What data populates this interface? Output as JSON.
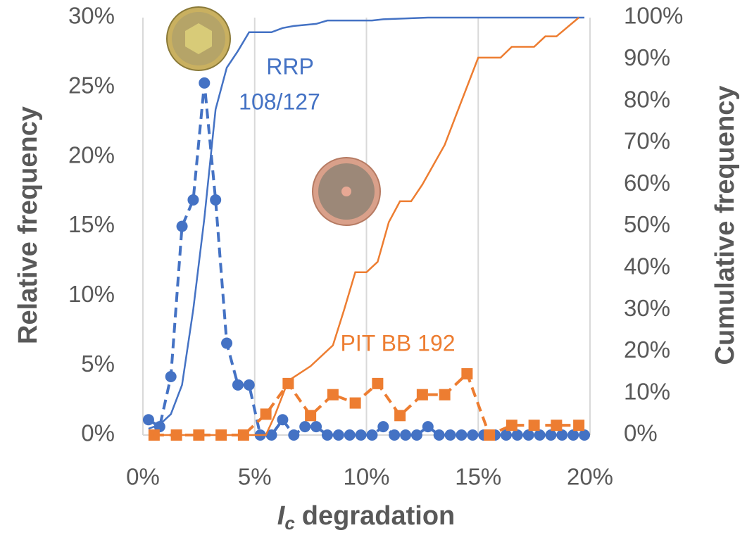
{
  "chart_data": {
    "type": "line",
    "ylabel": "Relative frequency",
    "y2label": "Cumulative frequency",
    "xlabel": {
      "symbol": "I",
      "subscript": "c",
      "text": "degradation"
    },
    "xlim": [
      0,
      20
    ],
    "xticks": [
      {
        "value": 0,
        "label": "0%"
      },
      {
        "value": 5,
        "label": "5%"
      },
      {
        "value": 10,
        "label": "10%"
      },
      {
        "value": 15,
        "label": "15%"
      },
      {
        "value": 20,
        "label": "20%"
      }
    ],
    "ylim": [
      0,
      30
    ],
    "yticks": [
      {
        "value": 0,
        "label": "0%"
      },
      {
        "value": 5,
        "label": "5%"
      },
      {
        "value": 10,
        "label": "10%"
      },
      {
        "value": 15,
        "label": "15%"
      },
      {
        "value": 20,
        "label": "20%"
      },
      {
        "value": 25,
        "label": "25%"
      },
      {
        "value": 30,
        "label": "30%"
      }
    ],
    "y2lim": [
      0,
      100
    ],
    "y2ticks": [
      {
        "value": 0,
        "label": "0%"
      },
      {
        "value": 10,
        "label": "10%"
      },
      {
        "value": 20,
        "label": "20%"
      },
      {
        "value": 30,
        "label": "30%"
      },
      {
        "value": 40,
        "label": "40%"
      },
      {
        "value": 50,
        "label": "50%"
      },
      {
        "value": 60,
        "label": "60%"
      },
      {
        "value": 70,
        "label": "70%"
      },
      {
        "value": 80,
        "label": "80%"
      },
      {
        "value": 90,
        "label": "90%"
      },
      {
        "value": 100,
        "label": "100%"
      }
    ],
    "grid": "x",
    "annotations": [
      {
        "text": "RRP",
        "color": "#4472c4"
      },
      {
        "text": "108/127",
        "color": "#4472c4"
      },
      {
        "text": "PIT BB 192",
        "color": "#ed7d31"
      }
    ],
    "series": [
      {
        "color": "#4472c4",
        "style": "dashed",
        "marker": "circle",
        "axis": "y",
        "x": [
          0.25,
          0.75,
          1.25,
          1.75,
          2.25,
          2.75,
          3.25,
          3.75,
          4.25,
          4.75,
          5.25,
          5.75,
          6.25,
          6.75,
          7.25,
          7.75,
          8.25,
          8.75,
          9.25,
          9.75,
          10.25,
          10.75,
          11.25,
          11.75,
          12.25,
          12.75,
          13.25,
          13.75,
          14.25,
          14.75,
          15.25,
          15.75,
          16.25,
          16.75,
          17.25,
          17.75,
          18.25,
          18.75,
          19.25,
          19.75
        ],
        "values": [
          1.1,
          0.6,
          4.2,
          15.0,
          16.9,
          25.3,
          16.9,
          6.6,
          3.6,
          3.6,
          0,
          0,
          1.1,
          0,
          0.6,
          0.6,
          0,
          0,
          0,
          0,
          0,
          0.6,
          0,
          0,
          0,
          0.6,
          0,
          0,
          0,
          0,
          0,
          0,
          0,
          0,
          0,
          0,
          0,
          0,
          0,
          0
        ]
      },
      {
        "color": "#ed7d31",
        "style": "dashed",
        "marker": "square",
        "axis": "y",
        "x": [
          0.5,
          1.5,
          2.5,
          3.5,
          4.5,
          5.5,
          6.5,
          7.5,
          8.5,
          9.5,
          10.5,
          11.5,
          12.5,
          13.5,
          14.5,
          15.5,
          16.5,
          17.5,
          18.5,
          19.5
        ],
        "values": [
          0,
          0,
          0,
          0,
          0,
          1.5,
          3.7,
          1.4,
          2.9,
          2.3,
          3.7,
          1.4,
          2.9,
          2.9,
          4.4,
          0,
          0.7,
          0.7,
          0.7,
          0.7
        ]
      },
      {
        "color": "#4472c4",
        "style": "solid",
        "marker": "none",
        "axis": "y2",
        "x": [
          0.25,
          0.75,
          1.25,
          1.75,
          2.25,
          2.75,
          3.25,
          3.75,
          4.25,
          4.75,
          5.25,
          5.75,
          6.25,
          6.75,
          7.75,
          8.25,
          10.25,
          10.75,
          12.75,
          19.75
        ],
        "values": [
          1.5,
          2.5,
          5,
          12,
          30,
          52,
          78,
          88,
          92,
          96.5,
          96.5,
          96.5,
          97.5,
          98,
          98.5,
          99.3,
          99.3,
          99.6,
          100,
          100
        ]
      },
      {
        "color": "#ed7d31",
        "style": "solid",
        "marker": "none",
        "axis": "y2",
        "x": [
          0.5,
          5.5,
          5.9,
          6.5,
          7.5,
          8.5,
          9,
          9.5,
          10,
          10.5,
          11,
          11.5,
          12,
          12.5,
          13.5,
          14,
          15,
          16,
          16.5,
          17.5,
          18,
          18.5,
          19.5
        ],
        "values": [
          0,
          0,
          4.7,
          13,
          16.5,
          21.5,
          30,
          39,
          39,
          41.5,
          51,
          56,
          56,
          60,
          69.5,
          76.5,
          90.4,
          90.4,
          93,
          93,
          95.5,
          95.5,
          100
        ]
      }
    ]
  }
}
